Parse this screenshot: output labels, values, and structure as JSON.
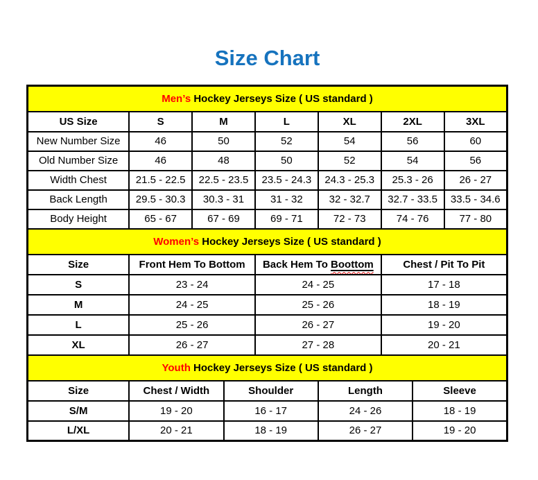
{
  "page": {
    "title": "Size Chart"
  },
  "colors": {
    "title_blue": "#1673BE",
    "accent_red": "#FF0000",
    "banner_yellow": "#FFFF00",
    "squiggle_red": "#E00000"
  },
  "chart_data": [
    {
      "type": "table",
      "id": "mens",
      "banner": {
        "highlight": "Men’s",
        "rest": "Hockey Jerseys Size ( US standard )"
      },
      "columns": [
        "US Size",
        "S",
        "M",
        "L",
        "XL",
        "2XL",
        "3XL"
      ],
      "rows": [
        {
          "label": "New Number Size",
          "values": [
            "46",
            "50",
            "52",
            "54",
            "56",
            "60"
          ]
        },
        {
          "label": "Old Number Size",
          "values": [
            "46",
            "48",
            "50",
            "52",
            "54",
            "56"
          ]
        },
        {
          "label": "Width Chest",
          "values": [
            "21.5 - 22.5",
            "22.5 - 23.5",
            "23.5 - 24.3",
            "24.3 - 25.3",
            "25.3 - 26",
            "26 - 27"
          ]
        },
        {
          "label": "Back Length",
          "values": [
            "29.5 - 30.3",
            "30.3 - 31",
            "31 - 32",
            "32 - 32.7",
            "32.7 - 33.5",
            "33.5 - 34.6"
          ]
        },
        {
          "label": "Body Height",
          "values": [
            "65 - 67",
            "67 - 69",
            "69 - 71",
            "72 - 73",
            "74 - 76",
            "77 - 80"
          ]
        }
      ]
    },
    {
      "type": "table",
      "id": "womens",
      "banner": {
        "highlight": "Women’s",
        "rest": "Hockey Jerseys Size ( US standard )"
      },
      "columns": [
        "Size",
        "Front Hem To Bottom",
        "Back Hem To Boottom",
        "Chest / Pit To Pit"
      ],
      "annotations": {
        "spellcheck_column": 2,
        "spellcheck_prefix": "Back Hem To ",
        "spellcheck_word": "Boottom"
      },
      "rows": [
        {
          "label": "S",
          "values": [
            "23 - 24",
            "24 - 25",
            "17 - 18"
          ]
        },
        {
          "label": "M",
          "values": [
            "24 - 25",
            "25 - 26",
            "18 - 19"
          ]
        },
        {
          "label": "L",
          "values": [
            "25 - 26",
            "26 - 27",
            "19 - 20"
          ]
        },
        {
          "label": "XL",
          "values": [
            "26 - 27",
            "27 - 28",
            "20 - 21"
          ]
        }
      ]
    },
    {
      "type": "table",
      "id": "youth",
      "banner": {
        "highlight": "Youth",
        "rest": "Hockey Jerseys Size ( US standard )"
      },
      "columns": [
        "Size",
        "Chest / Width",
        "Shoulder",
        "Length",
        "Sleeve"
      ],
      "rows": [
        {
          "label": "S/M",
          "values": [
            "19 - 20",
            "16 - 17",
            "24 - 26",
            "18 - 19"
          ]
        },
        {
          "label": "L/XL",
          "values": [
            "20 - 21",
            "18 - 19",
            "26 - 27",
            "19 - 20"
          ]
        }
      ]
    }
  ]
}
